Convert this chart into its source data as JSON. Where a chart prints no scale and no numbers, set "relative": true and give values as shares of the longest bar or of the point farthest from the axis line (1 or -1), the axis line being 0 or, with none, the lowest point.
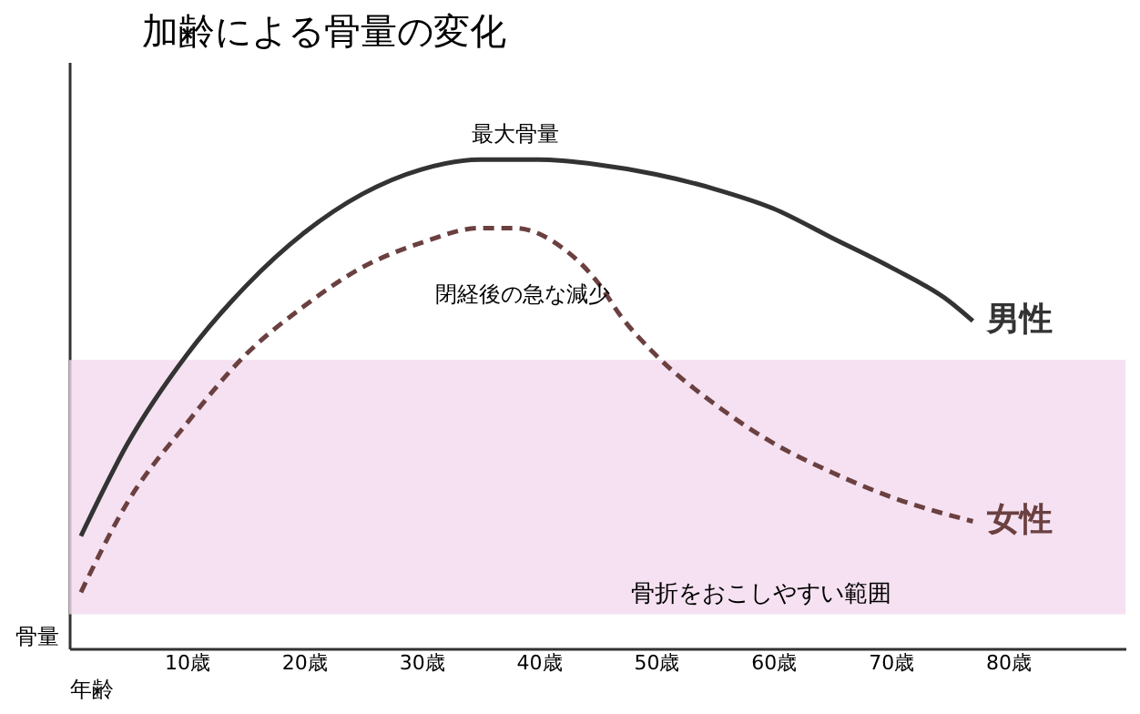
{
  "chart_data": {
    "type": "line",
    "title": "加齢による骨量の変化",
    "xlabel": "年齢",
    "ylabel": "骨量",
    "relative": true,
    "xlim": [
      0,
      90
    ],
    "xticks": [
      {
        "value": 10,
        "label": "10歳"
      },
      {
        "value": 20,
        "label": "20歳"
      },
      {
        "value": 30,
        "label": "30歳"
      },
      {
        "value": 40,
        "label": "40歳"
      },
      {
        "value": 50,
        "label": "50歳"
      },
      {
        "value": 60,
        "label": "60歳"
      },
      {
        "value": 70,
        "label": "70歳"
      },
      {
        "value": 80,
        "label": "80歳"
      }
    ],
    "series": [
      {
        "name": "男性",
        "color": "#333333",
        "line_style": "solid",
        "x": [
          1,
          5,
          10,
          15,
          20,
          25,
          30,
          35,
          40,
          45,
          50,
          55,
          60,
          65,
          70,
          75,
          77
        ],
        "values": [
          0.23,
          0.42,
          0.6,
          0.74,
          0.85,
          0.93,
          0.98,
          1.0,
          1.0,
          0.99,
          0.97,
          0.94,
          0.9,
          0.84,
          0.78,
          0.71,
          0.67
        ]
      },
      {
        "name": "女性",
        "color": "#6b4040",
        "line_style": "dashed",
        "x": [
          1,
          5,
          10,
          15,
          20,
          25,
          30,
          35,
          38,
          42,
          45,
          47,
          50,
          55,
          60,
          65,
          70,
          77
        ],
        "values": [
          0.115,
          0.3,
          0.46,
          0.6,
          0.7,
          0.78,
          0.83,
          0.86,
          0.86,
          0.82,
          0.75,
          0.68,
          0.6,
          0.5,
          0.42,
          0.36,
          0.31,
          0.26
        ]
      }
    ],
    "bands": [
      {
        "axis": "y",
        "from": 0.07,
        "to": 0.59,
        "label": "骨折をおこしやすい範囲",
        "color": "#f2d9ee"
      }
    ],
    "annotations": [
      {
        "text": "最大骨量",
        "x": 38,
        "y": 1.0
      },
      {
        "text": "閉経後の急な減少",
        "x": 47,
        "y": 0.68
      }
    ],
    "grid": false,
    "legend": false
  }
}
